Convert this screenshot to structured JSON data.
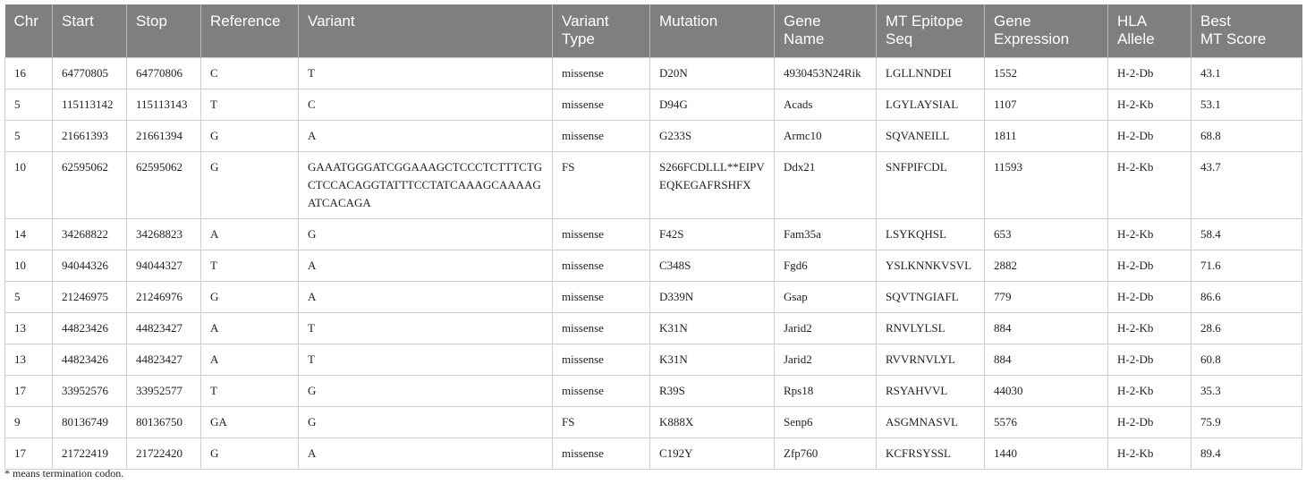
{
  "table": {
    "headers": [
      "Chr",
      "Start",
      "Stop",
      "Reference",
      "Variant",
      "Variant Type",
      "Mutation",
      "Gene Name",
      "MT Epitope Seq",
      "Gene Expression",
      "HLA Allele",
      "Best MT Score"
    ],
    "header_lines": [
      [
        "Chr"
      ],
      [
        "Start"
      ],
      [
        "Stop"
      ],
      [
        "Reference"
      ],
      [
        "Variant"
      ],
      [
        "Variant",
        "Type"
      ],
      [
        "Mutation"
      ],
      [
        "Gene",
        "Name"
      ],
      [
        "MT Epitope",
        "Seq"
      ],
      [
        "Gene",
        "Expression"
      ],
      [
        "HLA",
        "Allele"
      ],
      [
        "Best",
        "MT Score"
      ]
    ],
    "rows": [
      [
        "16",
        "64770805",
        "64770806",
        "C",
        "T",
        "missense",
        "D20N",
        "4930453N24Rik",
        "LGLLNNDEI",
        "1552",
        "H-2-Db",
        "43.1"
      ],
      [
        "5",
        "115113142",
        "115113143",
        "T",
        "C",
        "missense",
        "D94G",
        "Acads",
        "LGYLAYSIAL",
        "1107",
        "H-2-Kb",
        "53.1"
      ],
      [
        "5",
        "21661393",
        "21661394",
        "G",
        "A",
        "missense",
        "G233S",
        "Armc10",
        "SQVANEILL",
        "1811",
        "H-2-Db",
        "68.8"
      ],
      [
        "10",
        "62595062",
        "62595062",
        "G",
        "GAAATGGGATCGGAAAGCTCCCTCTTTCTGCTCCACAGGTATTTCCTATCAAAGCAAAAGATCACAGA",
        "FS",
        "S266FCDLLL**EIPVEQKEGAFRSHFX",
        "Ddx21",
        "SNFPIFCDL",
        "11593",
        "H-2-Kb",
        "43.7"
      ],
      [
        "14",
        "34268822",
        "34268823",
        "A",
        "G",
        "missense",
        "F42S",
        "Fam35a",
        "LSYKQHSL",
        "653",
        "H-2-Kb",
        "58.4"
      ],
      [
        "10",
        "94044326",
        "94044327",
        "T",
        "A",
        "missense",
        "C348S",
        "Fgd6",
        "YSLKNNKVSVL",
        "2882",
        "H-2-Db",
        "71.6"
      ],
      [
        "5",
        "21246975",
        "21246976",
        "G",
        "A",
        "missense",
        "D339N",
        "Gsap",
        "SQVTNGIAFL",
        "779",
        "H-2-Db",
        "86.6"
      ],
      [
        "13",
        "44823426",
        "44823427",
        "A",
        "T",
        "missense",
        "K31N",
        "Jarid2",
        "RNVLYLSL",
        "884",
        "H-2-Kb",
        "28.6"
      ],
      [
        "13",
        "44823426",
        "44823427",
        "A",
        "T",
        "missense",
        "K31N",
        "Jarid2",
        "RVVRNVLYL",
        "884",
        "H-2-Db",
        "60.8"
      ],
      [
        "17",
        "33952576",
        "33952577",
        "T",
        "G",
        "missense",
        "R39S",
        "Rps18",
        "RSYAHVVL",
        "44030",
        "H-2-Kb",
        "35.3"
      ],
      [
        "9",
        "80136749",
        "80136750",
        "GA",
        "G",
        "FS",
        "K888X",
        "Senp6",
        "ASGMNASVL",
        "5576",
        "H-2-Db",
        "75.9"
      ],
      [
        "17",
        "21722419",
        "21722420",
        "G",
        "A",
        "missense",
        "C192Y",
        "Zfp760",
        "KCFRSYSSL",
        "1440",
        "H-2-Kb",
        "89.4"
      ]
    ]
  },
  "footnote": "* means termination codon.",
  "colors": {
    "header_bg": "#7f7f7f",
    "header_text": "#ffffff",
    "grid": "#cfcfcf"
  }
}
